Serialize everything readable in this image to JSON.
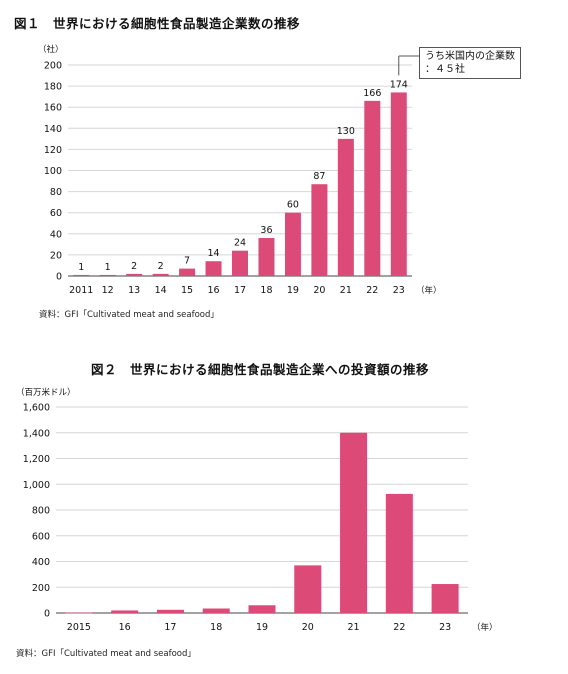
{
  "chart_data": [
    {
      "type": "bar",
      "title": "図１　世界における細胞性食品製造企業数の推移",
      "unit_label": "（社）",
      "x_unit": "（年）",
      "categories": [
        "2011",
        "12",
        "13",
        "14",
        "15",
        "16",
        "17",
        "18",
        "19",
        "20",
        "21",
        "22",
        "23"
      ],
      "values": [
        1,
        1,
        2,
        2,
        7,
        14,
        24,
        36,
        60,
        87,
        130,
        166,
        174
      ],
      "data_labels": [
        "1",
        "1",
        "2",
        "2",
        "7",
        "14",
        "24",
        "36",
        "60",
        "87",
        "130",
        "166",
        "174"
      ],
      "ylim": [
        0,
        200
      ],
      "y_ticks": [
        "0",
        "20",
        "40",
        "60",
        "80",
        "100",
        "120",
        "140",
        "160",
        "180",
        "200"
      ],
      "grid": true,
      "bar_color": "#dc4a78",
      "annotation": {
        "line1": "うち米国内の企業数",
        "line2": "：４５社"
      },
      "source": "資料：GFI「Cultivated meat and seafood」"
    },
    {
      "type": "bar",
      "title": "図２　世界における細胞性食品製造企業への投資額の推移",
      "unit_label": "（百万米ドル）",
      "x_unit": "（年）",
      "categories": [
        "2015",
        "16",
        "17",
        "18",
        "19",
        "20",
        "21",
        "22",
        "23"
      ],
      "values": [
        3,
        20,
        25,
        35,
        60,
        370,
        1400,
        925,
        225
      ],
      "ylim": [
        0,
        1600
      ],
      "y_ticks": [
        "0",
        "200",
        "400",
        "600",
        "800",
        "1,000",
        "1,200",
        "1,400",
        "1,600"
      ],
      "grid": true,
      "bar_color": "#dc4a78",
      "source": "資料：GFI「Cultivated meat and seafood」"
    }
  ]
}
